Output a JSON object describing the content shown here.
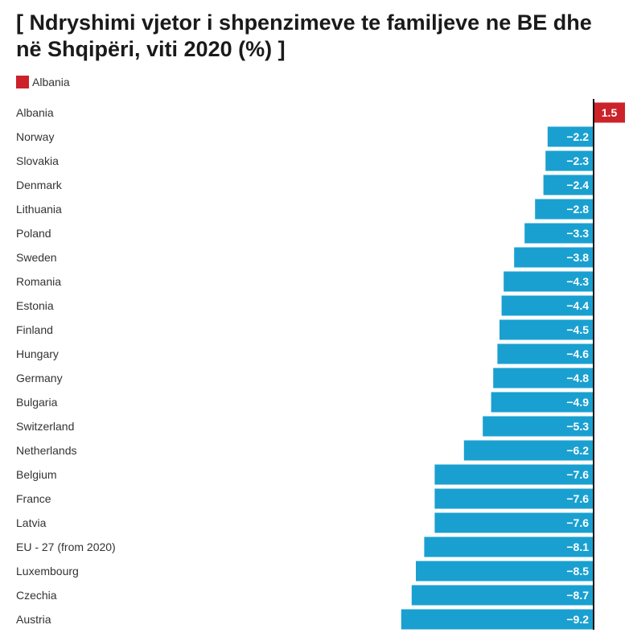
{
  "title": "[ Ndryshimi vjetor i shpenzimeve te familjeve ne BE dhe në Shqipëri, viti 2020 (%) ]",
  "legend": [
    {
      "label": "Albania",
      "color": "#cc2229"
    }
  ],
  "colors": {
    "highlight": "#cc2229",
    "bar": "#1aa0d0",
    "axis": "#111111"
  },
  "chart_data": {
    "type": "bar",
    "orientation": "horizontal",
    "title": "[ Ndryshimi vjetor i shpenzimeve te familjeve ne BE dhe në Shqipëri, viti 2020 (%) ]",
    "xlabel": "",
    "ylabel": "",
    "xlim": [
      -9.2,
      1.5
    ],
    "grid": false,
    "highlight": "Albania",
    "categories": [
      "Albania",
      "Norway",
      "Slovakia",
      "Denmark",
      "Lithuania",
      "Poland",
      "Sweden",
      "Romania",
      "Estonia",
      "Finland",
      "Hungary",
      "Germany",
      "Bulgaria",
      "Switzerland",
      "Netherlands",
      "Belgium",
      "France",
      "Latvia",
      "EU - 27 (from 2020)",
      "Luxembourg",
      "Czechia",
      "Austria"
    ],
    "values": [
      1.5,
      -2.2,
      -2.3,
      -2.4,
      -2.8,
      -3.3,
      -3.8,
      -4.3,
      -4.4,
      -4.5,
      -4.6,
      -4.8,
      -4.9,
      -5.3,
      -6.2,
      -7.6,
      -7.6,
      -7.6,
      -8.1,
      -8.5,
      -8.7,
      -9.2
    ],
    "value_labels": [
      "1.5",
      "−2.2",
      "−2.3",
      "−2.4",
      "−2.8",
      "−3.3",
      "−3.8",
      "−4.3",
      "−4.4",
      "−4.5",
      "−4.6",
      "−4.8",
      "−4.9",
      "−5.3",
      "−6.2",
      "−7.6",
      "−7.6",
      "−7.6",
      "−8.1",
      "−8.5",
      "−8.7",
      "−9.2"
    ]
  }
}
